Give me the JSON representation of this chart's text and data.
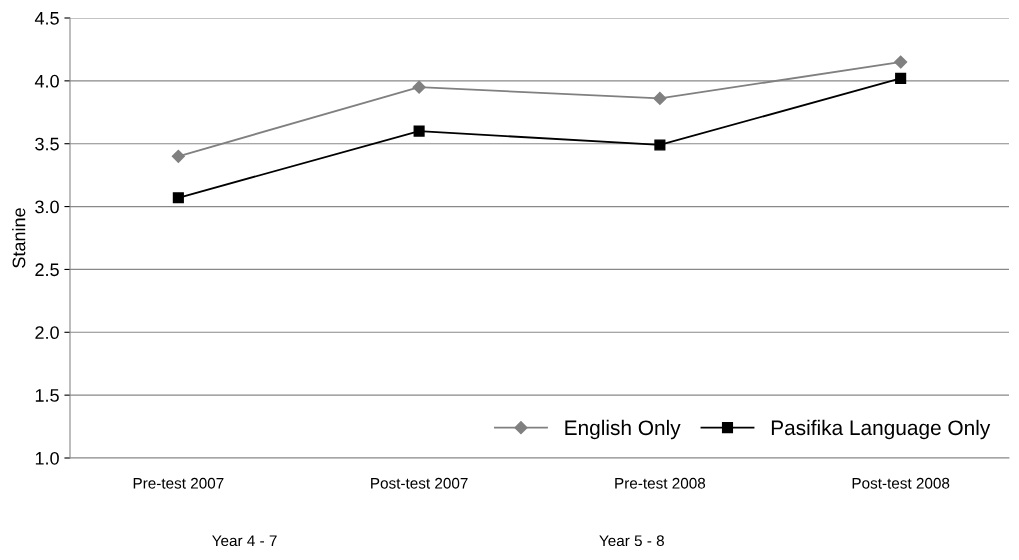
{
  "chart_data": {
    "type": "line",
    "ylabel": "Stanine",
    "categories": [
      "Pre-test 2007",
      "Post-test 2007",
      "Pre-test 2008",
      "Post-test 2008"
    ],
    "ylim": [
      1.0,
      4.5
    ],
    "yticks": [
      {
        "value": 1.0,
        "label": "1.0"
      },
      {
        "value": 1.5,
        "label": "1.5"
      },
      {
        "value": 2.0,
        "label": "2.0"
      },
      {
        "value": 2.5,
        "label": "2.5"
      },
      {
        "value": 3.0,
        "label": "3.0"
      },
      {
        "value": 3.5,
        "label": "3.5"
      },
      {
        "value": 4.0,
        "label": "4.0"
      },
      {
        "value": 4.5,
        "label": "4.5"
      }
    ],
    "series": [
      {
        "name": "English Only",
        "color": "#808080",
        "marker": "diamond",
        "values": [
          3.4,
          3.95,
          3.86,
          4.15
        ]
      },
      {
        "name": "Pasifika Language Only",
        "color": "#000000",
        "marker": "square",
        "values": [
          3.07,
          3.6,
          3.49,
          4.02
        ]
      }
    ],
    "annotations": [
      "Year 4 - 7",
      "Year 5 - 8"
    ],
    "grid": "y",
    "legend": "bottom right",
    "line_style": "solid"
  }
}
